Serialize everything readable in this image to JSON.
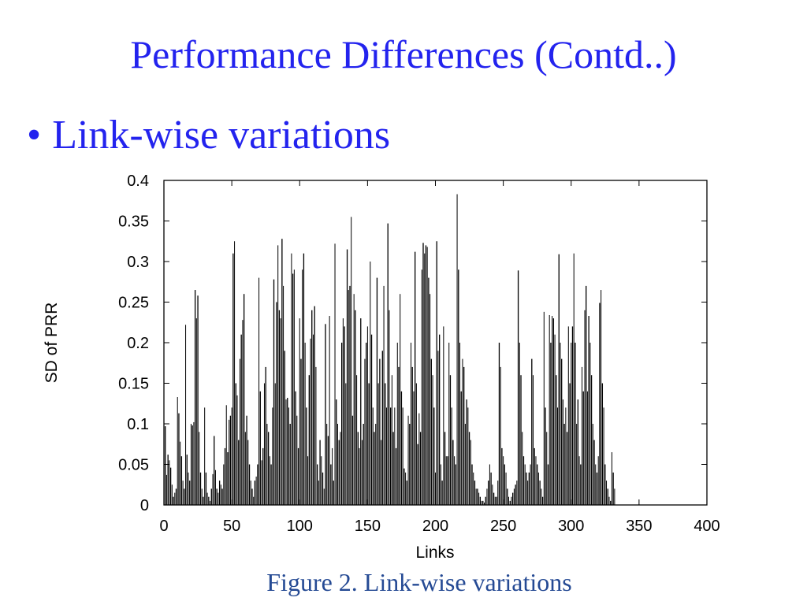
{
  "slide": {
    "title": "Performance Differences (Contd..)",
    "bullet_marker": "•",
    "bullet_text": "Link-wise variations",
    "caption": "Figure 2. Link-wise variations"
  },
  "colors": {
    "title": "#2323ee",
    "caption": "#254a94",
    "bars": "#000000"
  },
  "chart_data": {
    "type": "bar",
    "title": "",
    "xlabel": "Links",
    "ylabel": "SD of PRR",
    "xlim": [
      0,
      400
    ],
    "ylim": [
      0,
      0.4
    ],
    "x_ticks": [
      0,
      50,
      100,
      150,
      200,
      250,
      300,
      350,
      400
    ],
    "x_tick_labels": [
      "0",
      "50",
      "100",
      "150",
      "200",
      "250",
      "300",
      "350",
      "400"
    ],
    "y_ticks": [
      0,
      0.05,
      0.1,
      0.15,
      0.2,
      0.25,
      0.3,
      0.35,
      0.4
    ],
    "y_tick_labels": [
      "0",
      "0.05",
      "0.1",
      "0.15",
      "0.2",
      "0.25",
      "0.3",
      "0.35",
      "0.4"
    ],
    "grid": false,
    "legend": "none",
    "x_start": 1,
    "x_step": 1,
    "values": [
      0.097,
      0.037,
      0.062,
      0.055,
      0.046,
      0.025,
      0.01,
      0.015,
      0.02,
      0.133,
      0.113,
      0.078,
      0.06,
      0.03,
      0.02,
      0.222,
      0.062,
      0.04,
      0.03,
      0.1,
      0.098,
      0.102,
      0.265,
      0.23,
      0.258,
      0.09,
      0.04,
      0.02,
      0.01,
      0.12,
      0.04,
      0.015,
      0.01,
      0.005,
      0.02,
      0.038,
      0.085,
      0.043,
      0.02,
      0.015,
      0.03,
      0.025,
      0.02,
      0.05,
      0.07,
      0.123,
      0.065,
      0.105,
      0.11,
      0.12,
      0.31,
      0.325,
      0.15,
      0.135,
      0.08,
      0.18,
      0.21,
      0.228,
      0.26,
      0.09,
      0.11,
      0.08,
      0.05,
      0.03,
      0.02,
      0.01,
      0.03,
      0.035,
      0.05,
      0.28,
      0.14,
      0.055,
      0.07,
      0.15,
      0.17,
      0.1,
      0.09,
      0.06,
      0.05,
      0.12,
      0.278,
      0.15,
      0.25,
      0.32,
      0.24,
      0.23,
      0.328,
      0.27,
      0.19,
      0.13,
      0.132,
      0.12,
      0.1,
      0.31,
      0.285,
      0.29,
      0.14,
      0.11,
      0.07,
      0.23,
      0.18,
      0.29,
      0.31,
      0.2,
      0.12,
      0.06,
      0.16,
      0.205,
      0.24,
      0.21,
      0.245,
      0.17,
      0.05,
      0.03,
      0.08,
      0.06,
      0.04,
      0.02,
      0.223,
      0.1,
      0.085,
      0.233,
      0.05,
      0.07,
      0.03,
      0.322,
      0.13,
      0.1,
      0.08,
      0.09,
      0.2,
      0.23,
      0.22,
      0.15,
      0.315,
      0.265,
      0.27,
      0.355,
      0.11,
      0.26,
      0.24,
      0.16,
      0.09,
      0.07,
      0.23,
      0.08,
      0.1,
      0.18,
      0.2,
      0.22,
      0.15,
      0.3,
      0.21,
      0.12,
      0.09,
      0.1,
      0.28,
      0.15,
      0.18,
      0.08,
      0.19,
      0.27,
      0.15,
      0.12,
      0.347,
      0.24,
      0.12,
      0.16,
      0.09,
      0.12,
      0.07,
      0.2,
      0.17,
      0.26,
      0.14,
      0.12,
      0.045,
      0.04,
      0.03,
      0.11,
      0.1,
      0.2,
      0.17,
      0.14,
      0.312,
      0.15,
      0.075,
      0.113,
      0.09,
      0.29,
      0.323,
      0.31,
      0.32,
      0.318,
      0.28,
      0.26,
      0.18,
      0.16,
      0.12,
      0.04,
      0.325,
      0.19,
      0.21,
      0.05,
      0.03,
      0.22,
      0.09,
      0.06,
      0.06,
      0.2,
      0.16,
      0.12,
      0.08,
      0.06,
      0.05,
      0.383,
      0.29,
      0.2,
      0.14,
      0.18,
      0.17,
      0.1,
      0.13,
      0.12,
      0.09,
      0.08,
      0.05,
      0.04,
      0.03,
      0.02,
      0.02,
      0.015,
      0.01,
      0.005,
      0.005,
      0.003,
      0.01,
      0.02,
      0.03,
      0.05,
      0.04,
      0.025,
      0.015,
      0.01,
      0.01,
      0.03,
      0.2,
      0.17,
      0.07,
      0.06,
      0.05,
      0.04,
      0.02,
      0.01,
      0.005,
      0.01,
      0.015,
      0.02,
      0.025,
      0.03,
      0.289,
      0.2,
      0.16,
      0.09,
      0.06,
      0.05,
      0.04,
      0.03,
      0.04,
      0.05,
      0.18,
      0.16,
      0.07,
      0.06,
      0.05,
      0.04,
      0.03,
      0.02,
      0.01,
      0.238,
      0.12,
      0.09,
      0.05,
      0.234,
      0.2,
      0.233,
      0.23,
      0.21,
      0.16,
      0.12,
      0.309,
      0.2,
      0.18,
      0.13,
      0.1,
      0.12,
      0.09,
      0.22,
      0.15,
      0.2,
      0.22,
      0.31,
      0.2,
      0.1,
      0.13,
      0.06,
      0.05,
      0.17,
      0.14,
      0.24,
      0.27,
      0.14,
      0.233,
      0.2,
      0.16,
      0.1,
      0.08,
      0.05,
      0.04,
      0.06,
      0.249,
      0.265,
      0.15,
      0.12,
      0.05,
      0.03,
      0.02,
      0.01,
      0.005,
      0.065,
      0.04,
      0.02
    ]
  }
}
